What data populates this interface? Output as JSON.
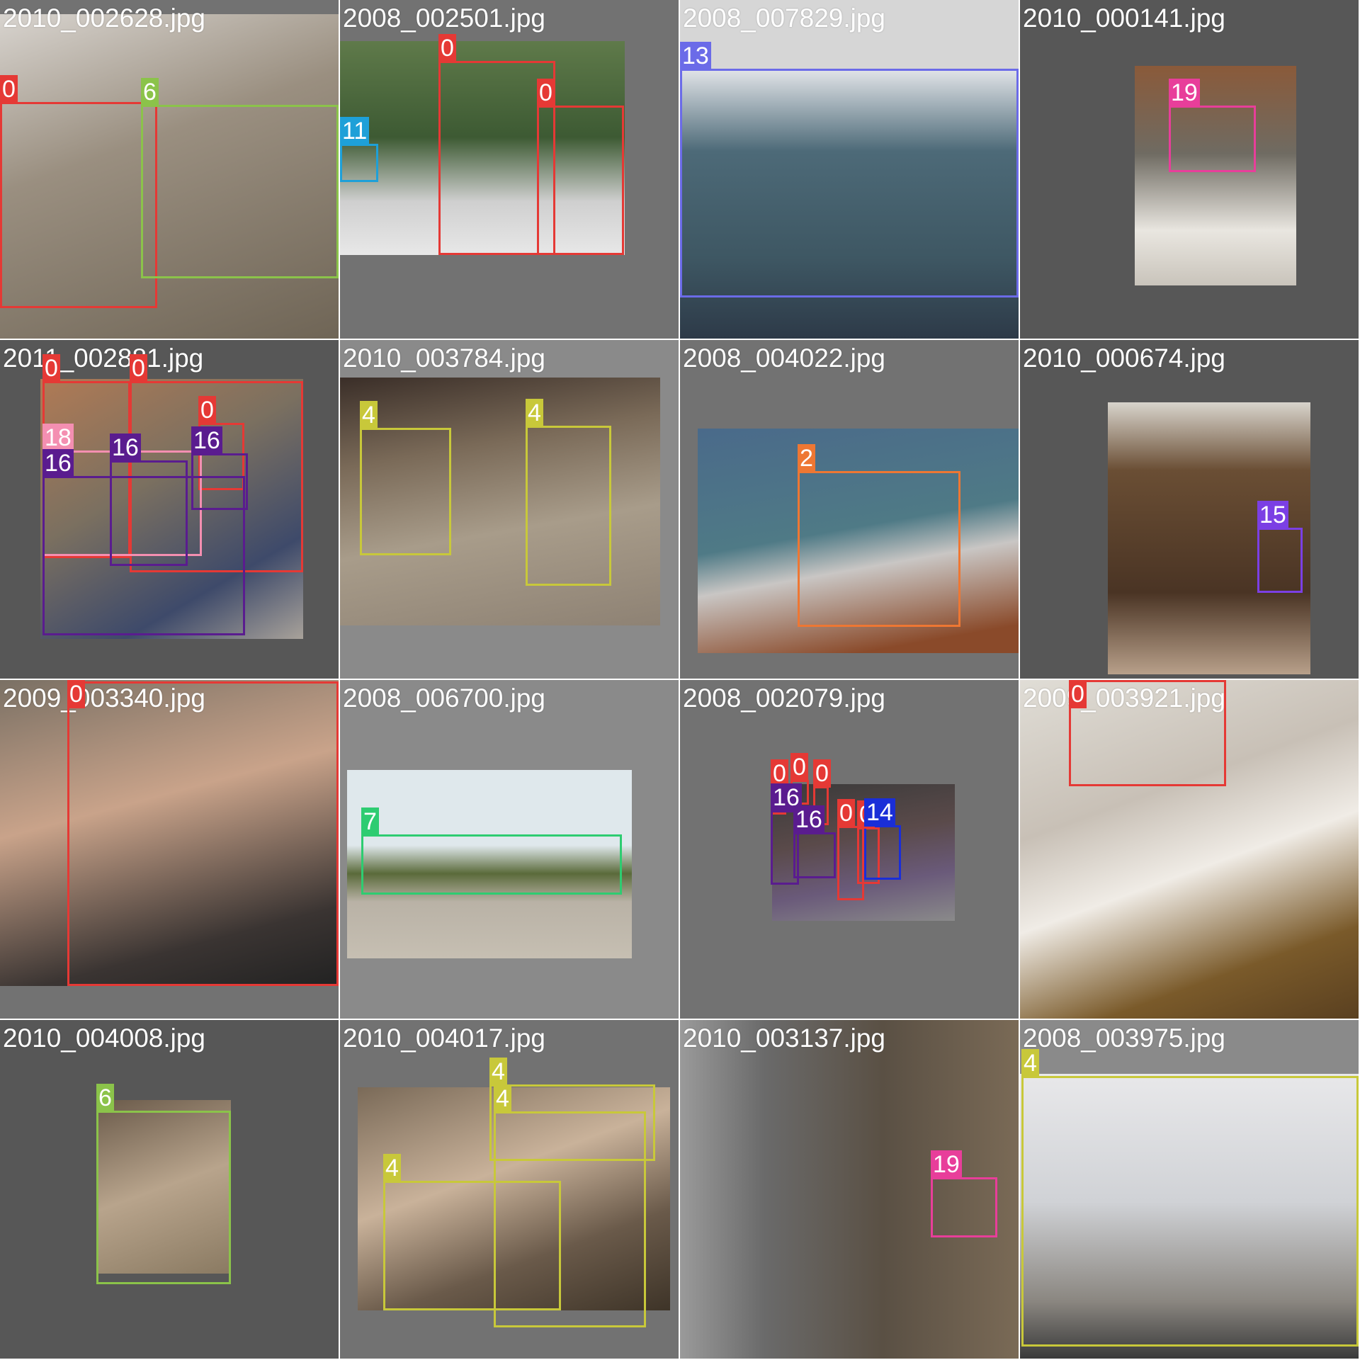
{
  "mosaic": {
    "tiles": [
      {
        "filename": "2010_002628.jpg",
        "boxes": [
          {
            "cls": "0",
            "color": "#e53935"
          },
          {
            "cls": "6",
            "color": "#8bc34a"
          }
        ]
      },
      {
        "filename": "2008_002501.jpg",
        "boxes": [
          {
            "cls": "0",
            "color": "#e53935"
          },
          {
            "cls": "0",
            "color": "#e53935"
          },
          {
            "cls": "11",
            "color": "#1ea0d8"
          }
        ]
      },
      {
        "filename": "2008_007829.jpg",
        "boxes": [
          {
            "cls": "13",
            "color": "#6b6be8"
          }
        ]
      },
      {
        "filename": "2010_000141.jpg",
        "boxes": [
          {
            "cls": "19",
            "color": "#e83e9a"
          }
        ]
      },
      {
        "filename": "2011_002881.jpg",
        "boxes": [
          {
            "cls": "0",
            "color": "#e53935"
          },
          {
            "cls": "0",
            "color": "#e53935"
          },
          {
            "cls": "0",
            "color": "#e53935"
          },
          {
            "cls": "18",
            "color": "#f48fb1"
          },
          {
            "cls": "16",
            "color": "#5a1c8f"
          },
          {
            "cls": "16",
            "color": "#5a1c8f"
          },
          {
            "cls": "16",
            "color": "#5a1c8f"
          }
        ]
      },
      {
        "filename": "2010_003784.jpg",
        "boxes": [
          {
            "cls": "4",
            "color": "#c8c83a"
          },
          {
            "cls": "4",
            "color": "#c8c83a"
          }
        ]
      },
      {
        "filename": "2008_004022.jpg",
        "boxes": [
          {
            "cls": "2",
            "color": "#ee7733"
          }
        ]
      },
      {
        "filename": "2010_000674.jpg",
        "boxes": [
          {
            "cls": "15",
            "color": "#7b3fe4"
          }
        ]
      },
      {
        "filename": "2009_003340.jpg",
        "boxes": [
          {
            "cls": "0",
            "color": "#e53935"
          }
        ]
      },
      {
        "filename": "2008_006700.jpg",
        "boxes": [
          {
            "cls": "7",
            "color": "#2ecc71"
          }
        ]
      },
      {
        "filename": "2008_002079.jpg",
        "boxes": [
          {
            "cls": "0",
            "color": "#e53935"
          },
          {
            "cls": "0",
            "color": "#e53935"
          },
          {
            "cls": "0",
            "color": "#e53935"
          },
          {
            "cls": "0",
            "color": "#e53935"
          },
          {
            "cls": "0",
            "color": "#e53935"
          },
          {
            "cls": "16",
            "color": "#5a1c8f"
          },
          {
            "cls": "16",
            "color": "#5a1c8f"
          },
          {
            "cls": "14",
            "color": "#1a2ed8"
          }
        ]
      },
      {
        "filename": "2009_003921.jpg",
        "boxes": [
          {
            "cls": "0",
            "color": "#e53935"
          }
        ]
      },
      {
        "filename": "2010_004008.jpg",
        "boxes": [
          {
            "cls": "6",
            "color": "#8bc34a"
          }
        ]
      },
      {
        "filename": "2010_004017.jpg",
        "boxes": [
          {
            "cls": "4",
            "color": "#c8c83a"
          },
          {
            "cls": "4",
            "color": "#c8c83a"
          },
          {
            "cls": "4",
            "color": "#c8c83a"
          }
        ]
      },
      {
        "filename": "2010_003137.jpg",
        "boxes": [
          {
            "cls": "19",
            "color": "#e83e9a"
          }
        ]
      },
      {
        "filename": "2008_003975.jpg",
        "boxes": [
          {
            "cls": "4",
            "color": "#c8c83a"
          }
        ]
      }
    ]
  }
}
